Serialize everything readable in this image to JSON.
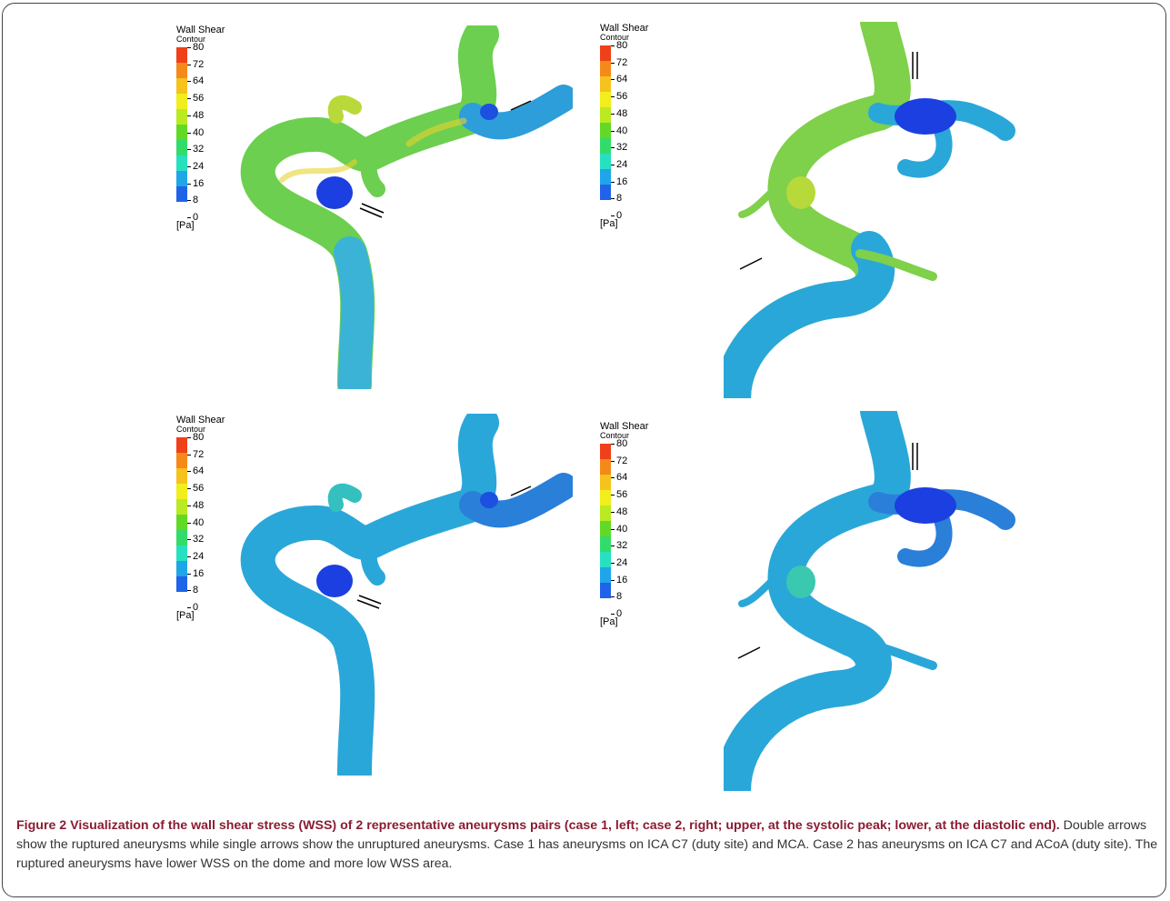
{
  "legend": {
    "title": "Wall Shear",
    "subtitle": "Contour",
    "unit": "[Pa]",
    "ticks": [
      "80",
      "72",
      "64",
      "56",
      "48",
      "40",
      "32",
      "24",
      "16",
      "8",
      "0"
    ],
    "colors": [
      "#f0401a",
      "#f58a1a",
      "#f6c21c",
      "#f2ee1c",
      "#b9ea22",
      "#62d926",
      "#32dc6a",
      "#27e0c0",
      "#1ea6e8",
      "#2063e9",
      "#1836e6"
    ]
  },
  "caption": {
    "bold": "Figure 2 Visualization of the wall shear stress (WSS) of 2 representative aneurysms pairs (case 1, left; case 2, right; upper, at the systolic peak; lower, at the diastolic end).",
    "text": " Double arrows show the ruptured aneurysms while single arrows show the unruptured aneurysms. Case 1 has aneurysms on ICA C7 (duty site) and MCA. Case 2 has aneurysms on ICA C7 and ACoA (duty site). The ruptured aneurysms have lower WSS on the dome and more low WSS area."
  },
  "colors": {
    "caption_bold": "#8a1c32",
    "vessel_warm": "#7fd04a",
    "vessel_cool": "#2aa7d9",
    "aneurysm_dark": "#1b3fe0"
  }
}
